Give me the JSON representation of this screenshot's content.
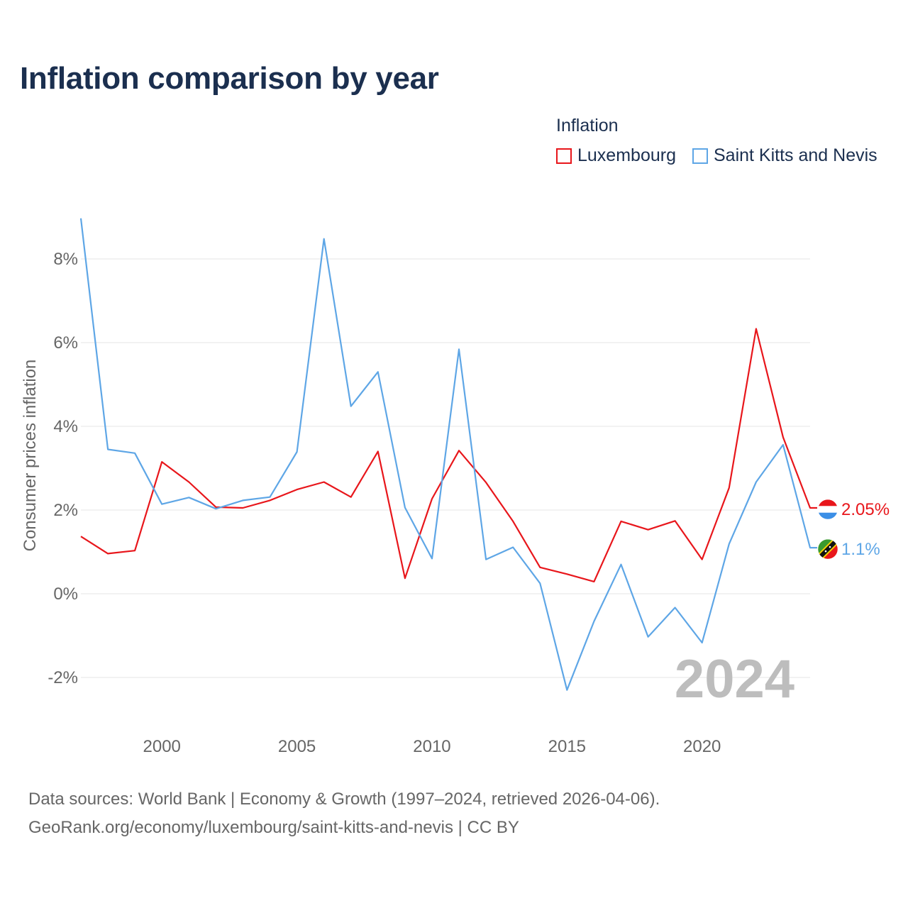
{
  "title": "Inflation comparison by year",
  "legend": {
    "title": "Inflation",
    "items": [
      {
        "label": "Luxembourg",
        "color": "#e8161b"
      },
      {
        "label": "Saint Kitts and Nevis",
        "color": "#5ea6e6"
      }
    ]
  },
  "watermark_year": "2024",
  "source": {
    "line1": "Data sources: World Bank | Economy & Growth (1997–2024, retrieved 2026-04-06).",
    "line2": "GeoRank.org/economy/luxembourg/saint-kitts-and-nevis | CC BY"
  },
  "chart_data": {
    "type": "line",
    "title": "Inflation comparison by year",
    "xlabel": "",
    "ylabel": "Consumer prices inflation",
    "xlim": [
      1997,
      2024
    ],
    "ylim": [
      -3,
      9
    ],
    "x_ticks": [
      2000,
      2005,
      2010,
      2015,
      2020
    ],
    "y_ticks": [
      -2,
      0,
      2,
      4,
      6,
      8
    ],
    "y_tick_labels": [
      "-2%",
      "0%",
      "2%",
      "4%",
      "6%",
      "8%"
    ],
    "grid": true,
    "legend_position": "top-right",
    "x": [
      1997,
      1998,
      1999,
      2000,
      2001,
      2002,
      2003,
      2004,
      2005,
      2006,
      2007,
      2008,
      2009,
      2010,
      2011,
      2012,
      2013,
      2014,
      2015,
      2016,
      2017,
      2018,
      2019,
      2020,
      2021,
      2022,
      2023,
      2024
    ],
    "series": [
      {
        "name": "Luxembourg",
        "color": "#e8161b",
        "values": [
          1.37,
          0.96,
          1.03,
          3.15,
          2.67,
          2.07,
          2.05,
          2.23,
          2.49,
          2.67,
          2.31,
          3.4,
          0.37,
          2.27,
          3.42,
          2.66,
          1.73,
          0.63,
          0.47,
          0.29,
          1.73,
          1.53,
          1.74,
          0.82,
          2.53,
          6.33,
          3.74,
          2.05
        ],
        "end_label": "2.05%"
      },
      {
        "name": "Saint Kitts and Nevis",
        "color": "#5ea6e6",
        "values": [
          8.97,
          3.45,
          3.36,
          2.14,
          2.3,
          2.03,
          2.23,
          2.31,
          3.39,
          8.48,
          4.48,
          5.3,
          2.06,
          0.84,
          5.84,
          0.82,
          1.11,
          0.25,
          -2.3,
          -0.66,
          0.7,
          -1.03,
          -0.33,
          -1.17,
          1.19,
          2.67,
          3.56,
          1.1
        ],
        "end_label": "1.1%"
      }
    ]
  }
}
